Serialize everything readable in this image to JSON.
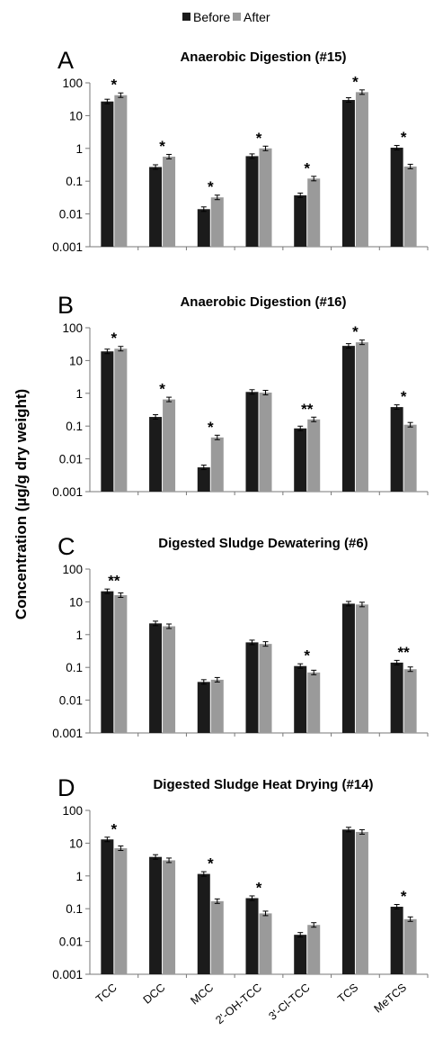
{
  "legend": {
    "before_label": "Before",
    "after_label": "After"
  },
  "ylabel": "Concentration (µg/g dry weight)",
  "colors": {
    "before": "#1b1b1b",
    "after": "#9a9a9a"
  },
  "chart_data": [
    {
      "type": "bar",
      "letter": "A",
      "title": "Anaerobic Digestion (#15)",
      "scale": "log",
      "ylim": [
        0.001,
        100
      ],
      "yticks": [
        "100",
        "10",
        "1",
        "0.1",
        "0.01",
        "0.001"
      ],
      "categories": [
        "TCC",
        "DCC",
        "MCC",
        "2'-OH-TCC",
        "3'-Cl-TCC",
        "TCS",
        "MeTCS"
      ],
      "series": [
        {
          "name": "Before",
          "values": [
            27,
            0.27,
            0.014,
            0.58,
            0.037,
            30,
            1.05
          ]
        },
        {
          "name": "After",
          "values": [
            42,
            0.56,
            0.032,
            1.0,
            0.12,
            52,
            0.28
          ]
        }
      ],
      "annotations": [
        "*",
        "*",
        "*",
        "*",
        "*",
        "*",
        "*"
      ]
    },
    {
      "type": "bar",
      "letter": "B",
      "title": "Anaerobic Digestion (#16)",
      "scale": "log",
      "ylim": [
        0.001,
        100
      ],
      "yticks": [
        "100",
        "10",
        "1",
        "0.1",
        "0.01",
        "0.001"
      ],
      "categories": [
        "TCC",
        "DCC",
        "MCC",
        "2'-OH-TCC",
        "3'-Cl-TCC",
        "TCS",
        "MeTCS"
      ],
      "series": [
        {
          "name": "Before",
          "values": [
            19,
            0.19,
            0.0055,
            1.1,
            0.085,
            28,
            0.38
          ]
        },
        {
          "name": "After",
          "values": [
            23,
            0.65,
            0.045,
            1.05,
            0.16,
            36,
            0.11
          ]
        }
      ],
      "annotations": [
        "*",
        "*",
        "*",
        "",
        "**",
        "*",
        "*"
      ]
    },
    {
      "type": "bar",
      "letter": "C",
      "title": "Digested Sludge Dewatering (#6)",
      "scale": "log",
      "ylim": [
        0.001,
        100
      ],
      "yticks": [
        "100",
        "10",
        "1",
        "0.1",
        "0.01",
        "0.001"
      ],
      "categories": [
        "TCC",
        "DCC",
        "MCC",
        "2'-OH-TCC",
        "3'-Cl-TCC",
        "TCS",
        "MeTCS"
      ],
      "series": [
        {
          "name": "Before",
          "values": [
            21,
            2.2,
            0.036,
            0.58,
            0.11,
            8.8,
            0.14
          ]
        },
        {
          "name": "After",
          "values": [
            16,
            1.8,
            0.042,
            0.52,
            0.07,
            8.3,
            0.088
          ]
        }
      ],
      "annotations": [
        "**",
        "",
        "",
        "",
        "*",
        "",
        "**"
      ]
    },
    {
      "type": "bar",
      "letter": "D",
      "title": "Digested Sludge Heat Drying (#14)",
      "scale": "log",
      "ylim": [
        0.001,
        100
      ],
      "yticks": [
        "100",
        "10",
        "1",
        "0.1",
        "0.01",
        "0.001"
      ],
      "categories": [
        "TCC",
        "DCC",
        "MCC",
        "2'-OH-TCC",
        "3'-Cl-TCC",
        "TCS",
        "MeTCS"
      ],
      "series": [
        {
          "name": "Before",
          "values": [
            13,
            3.8,
            1.15,
            0.21,
            0.016,
            26,
            0.115
          ]
        },
        {
          "name": "After",
          "values": [
            7,
            3.0,
            0.17,
            0.072,
            0.032,
            22,
            0.048
          ]
        }
      ],
      "annotations": [
        "*",
        "",
        "*",
        "*",
        "",
        "",
        "*"
      ]
    }
  ]
}
